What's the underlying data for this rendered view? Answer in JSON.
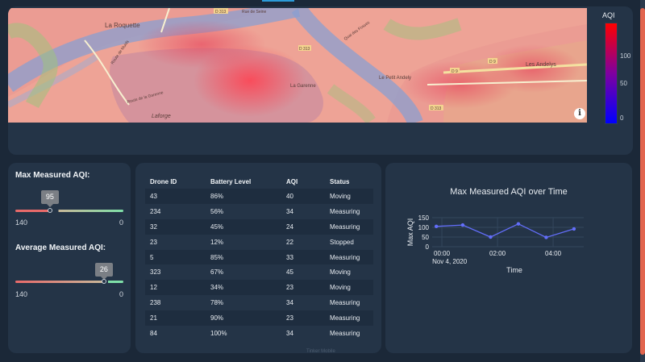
{
  "map": {
    "labels": [
      {
        "text": "La Roquette",
        "size": 8
      },
      {
        "text": "Route de Muids",
        "size": 5
      },
      {
        "text": "Route de la Garenne",
        "size": 5
      },
      {
        "text": "La Garenne",
        "size": 6
      },
      {
        "text": "Laforge",
        "size": 7
      },
      {
        "text": "Le Petit Andely",
        "size": 6
      },
      {
        "text": "Les Andelys",
        "size": 7
      },
      {
        "text": "Rue de Seine",
        "size": 5
      },
      {
        "text": "Quai des Fosses",
        "size": 5
      }
    ],
    "roads": [
      "D 313",
      "D 313",
      "D 9",
      "D 9",
      "D 313"
    ],
    "info_icon": "i"
  },
  "colorbar": {
    "title": "AQI",
    "ticks": [
      "100",
      "50",
      "0"
    ]
  },
  "gauges": [
    {
      "label": "Max Measured AQI:",
      "value": "95",
      "min": "140",
      "max": "0",
      "fraction": 0.32
    },
    {
      "label": "Average Measured AQI:",
      "value": "26",
      "min": "140",
      "max": "0",
      "fraction": 0.82
    }
  ],
  "table": {
    "columns": [
      "Drone ID",
      "Battery Level",
      "AQI",
      "Status"
    ],
    "rows": [
      [
        "43",
        "86%",
        "40",
        "Moving"
      ],
      [
        "234",
        "56%",
        "34",
        "Measuring"
      ],
      [
        "32",
        "45%",
        "24",
        "Measuring"
      ],
      [
        "23",
        "12%",
        "22",
        "Stopped"
      ],
      [
        "5",
        "85%",
        "33",
        "Measuring"
      ],
      [
        "323",
        "67%",
        "45",
        "Moving"
      ],
      [
        "12",
        "34%",
        "23",
        "Moving"
      ],
      [
        "238",
        "78%",
        "34",
        "Measuring"
      ],
      [
        "21",
        "90%",
        "23",
        "Measuring"
      ],
      [
        "84",
        "100%",
        "34",
        "Measuring"
      ]
    ]
  },
  "chart_data": {
    "type": "line",
    "title": "Max Measured AQI over Time",
    "xlabel": "Time",
    "ylabel": "Max AQI",
    "x_tick_labels": [
      "00:00",
      "02:00",
      "04:00"
    ],
    "x_tick_hours": [
      0,
      2,
      4
    ],
    "date_label": "Nov 4, 2020",
    "y_ticks": [
      0,
      50,
      100,
      150
    ],
    "ylim": [
      0,
      150
    ],
    "xlim_hours": [
      -0.35,
      5.1
    ],
    "x_hours": [
      -0.2,
      0.75,
      1.75,
      2.75,
      3.75,
      4.75
    ],
    "y": [
      105,
      112,
      50,
      118,
      48,
      92
    ],
    "line_color": "#636efa",
    "grid": true
  },
  "footer": {
    "text": "Tinker Mobile"
  }
}
